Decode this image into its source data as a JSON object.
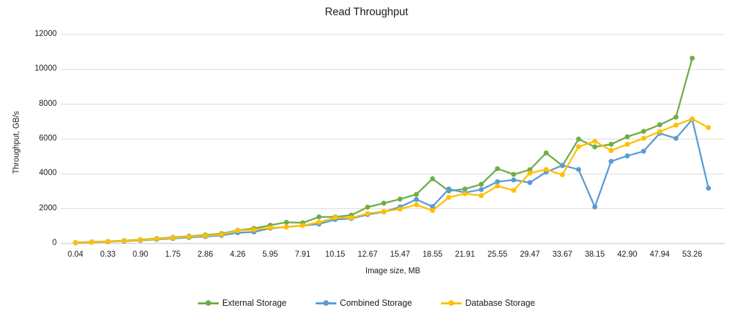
{
  "chart": {
    "title": "Read Throughput"
  },
  "chart_data": {
    "type": "line",
    "title": "Read Throughput",
    "xlabel": "Image size, MB",
    "ylabel": "Throughput, GB/s",
    "ylim": [
      0,
      12000
    ],
    "yticks": [
      0,
      2000,
      4000,
      6000,
      8000,
      10000,
      12000
    ],
    "grid": true,
    "legend_position": "bottom",
    "x_tick_labels": [
      "0.04",
      "0.33",
      "0.90",
      "1.75",
      "2.86",
      "4.26",
      "5.95",
      "7.91",
      "10.15",
      "12.67",
      "15.47",
      "18.55",
      "21.91",
      "25.55",
      "29.47",
      "33.67",
      "38.15",
      "42.90",
      "47.94",
      "53.26"
    ],
    "tick_label_interval": 2,
    "points_per_series": 40,
    "series": [
      {
        "name": "External Storage",
        "color": "#70AD47",
        "values": [
          60,
          95,
          120,
          170,
          215,
          285,
          355,
          420,
          490,
          570,
          760,
          865,
          1050,
          1220,
          1190,
          1525,
          1525,
          1630,
          2090,
          2315,
          2550,
          2820,
          3720,
          3020,
          3130,
          3400,
          4300,
          3970,
          4240,
          5200,
          4470,
          6000,
          5550,
          5700,
          6130,
          6440,
          6820,
          7260,
          10640,
          null
        ]
      },
      {
        "name": "Combined Storage",
        "color": "#5B9BD5",
        "values": [
          40,
          70,
          95,
          135,
          175,
          230,
          290,
          345,
          400,
          465,
          615,
          665,
          875,
          945,
          1035,
          1115,
          1380,
          1430,
          1665,
          1815,
          2100,
          2530,
          2120,
          3130,
          2920,
          3100,
          3550,
          3650,
          3500,
          4100,
          4490,
          4250,
          2100,
          4720,
          5030,
          5300,
          6330,
          6040,
          7130,
          3180
        ]
      },
      {
        "name": "Database Storage",
        "color": "#FFC000",
        "values": [
          55,
          85,
          110,
          155,
          200,
          260,
          330,
          390,
          450,
          520,
          745,
          795,
          905,
          945,
          1035,
          1220,
          1495,
          1470,
          1725,
          1840,
          1980,
          2225,
          1895,
          2650,
          2860,
          2750,
          3300,
          3050,
          4050,
          4250,
          3950,
          5560,
          5870,
          5340,
          5700,
          6040,
          6430,
          6800,
          7160,
          6660
        ]
      }
    ]
  }
}
